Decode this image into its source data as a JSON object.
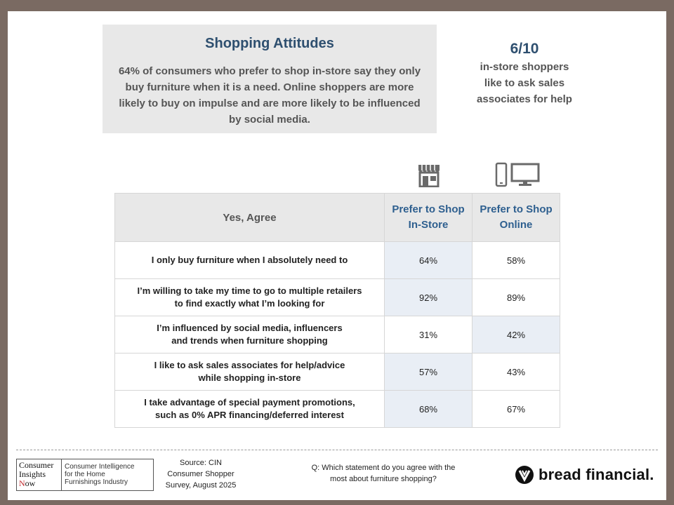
{
  "summary": {
    "title": "Shopping Attitudes",
    "text": "64% of consumers who prefer to shop in-store say they only buy furniture when it is a need. Online shoppers are more likely to buy on impulse and are more likely to be influenced by social media."
  },
  "stat": {
    "value": "6/10",
    "text_line1": "in-store shoppers",
    "text_line2": "like to ask sales",
    "text_line3": "associates for help"
  },
  "icons": {
    "store": "storefront-icon",
    "devices": "devices-icon"
  },
  "table": {
    "headers": {
      "agree": "Yes, Agree",
      "instore_line1": "Prefer to Shop",
      "instore_line2": "In-Store",
      "online_line1": "Prefer to Shop",
      "online_line2": "Online"
    },
    "rows": [
      {
        "line1": "I only buy furniture when I absolutely need to",
        "line2": "",
        "instore": "64%",
        "online": "58%",
        "highlight": "instore"
      },
      {
        "line1": "I’m willing to take my time to go to multiple retailers",
        "line2": "to find exactly what I’m looking for",
        "instore": "92%",
        "online": "89%",
        "highlight": "instore"
      },
      {
        "line1": "I’m influenced by social media, influencers",
        "line2": "and trends when furniture shopping",
        "instore": "31%",
        "online": "42%",
        "highlight": "online"
      },
      {
        "line1": "I like to ask sales associates for help/advice",
        "line2": "while shopping in-store",
        "instore": "57%",
        "online": "43%",
        "highlight": "instore"
      },
      {
        "line1": "I take advantage of special payment promotions,",
        "line2": "such as 0% APR financing/deferred interest",
        "instore": "68%",
        "online": "67%",
        "highlight": "instore"
      }
    ]
  },
  "footer": {
    "cin_logo": {
      "line1": "Consumer",
      "line2": "Insights",
      "line3_first": "N",
      "line3_rest": "ow",
      "tag1": "Consumer Intelligence",
      "tag2": "for the Home",
      "tag3": "Furnishings Industry"
    },
    "source_line1": "Source: CIN",
    "source_line2": "Consumer Shopper",
    "source_line3": "Survey, August 2025",
    "question_line1": "Q: Which statement do you agree with the",
    "question_line2": "most about furniture shopping?",
    "brand": "bread financial"
  },
  "colors": {
    "frame": "#7a6a62",
    "title_blue": "#2e4f6f",
    "header_blue": "#2e5f8f",
    "highlight": "#e9eef5",
    "panel_gray": "#e8e8e8"
  }
}
